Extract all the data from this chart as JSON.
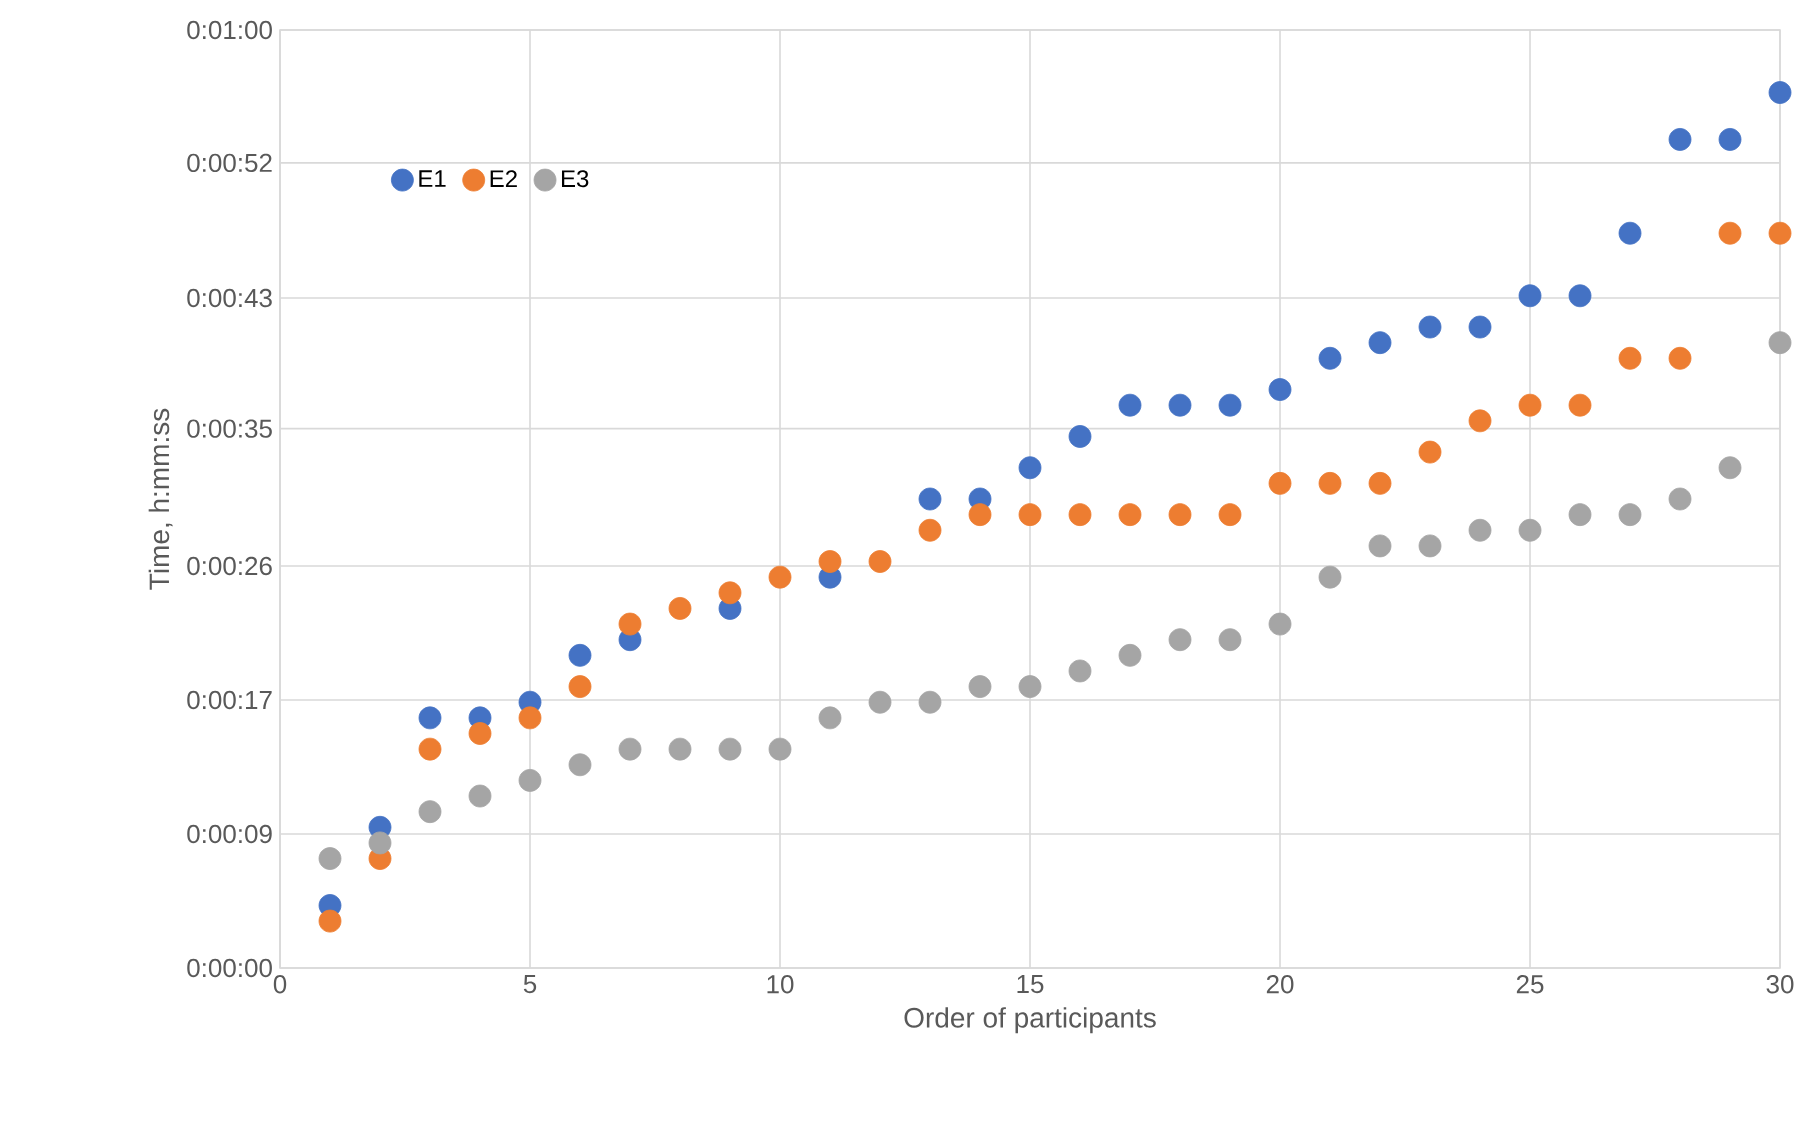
{
  "chart_data": {
    "type": "scatter",
    "xlabel": "Order of participants",
    "ylabel": "Time, h:mm:ss",
    "x": [
      1,
      2,
      3,
      4,
      5,
      6,
      7,
      8,
      9,
      10,
      11,
      12,
      13,
      14,
      15,
      16,
      17,
      18,
      19,
      20,
      21,
      22,
      23,
      24,
      25,
      26,
      27,
      28,
      29,
      30
    ],
    "series": [
      {
        "name": "E1",
        "color": "#4472c4",
        "values": [
          4,
          9,
          16,
          16,
          17,
          20,
          21,
          null,
          23,
          null,
          25,
          null,
          30,
          30,
          32,
          34,
          36,
          36,
          36,
          37,
          39,
          40,
          41,
          41,
          43,
          43,
          47,
          53,
          53,
          56
        ]
      },
      {
        "name": "E2",
        "color": "#ed7d31",
        "values": [
          3,
          7,
          14,
          15,
          16,
          18,
          22,
          23,
          24,
          25,
          26,
          26,
          28,
          29,
          29,
          29,
          29,
          29,
          29,
          31,
          31,
          31,
          33,
          35,
          36,
          36,
          39,
          39,
          47,
          47
        ]
      },
      {
        "name": "E3",
        "color": "#a5a5a5",
        "values": [
          7,
          8,
          10,
          11,
          12,
          13,
          14,
          14,
          14,
          14,
          16,
          17,
          17,
          18,
          18,
          19,
          20,
          21,
          21,
          22,
          25,
          27,
          27,
          28,
          28,
          29,
          29,
          30,
          32,
          40
        ]
      }
    ],
    "xlim": [
      0,
      30
    ],
    "xticks": [
      0,
      5,
      10,
      15,
      20,
      25,
      30
    ],
    "ylim": [
      0,
      60
    ],
    "yticks": [
      {
        "value": 0,
        "label": "0:00:00"
      },
      {
        "value": 8.571,
        "label": "0:00:09"
      },
      {
        "value": 17.143,
        "label": "0:00:17"
      },
      {
        "value": 25.714,
        "label": "0:00:26"
      },
      {
        "value": 34.5,
        "label": "0:00:35"
      },
      {
        "value": 42.857,
        "label": "0:00:43"
      },
      {
        "value": 51.5,
        "label": "0:00:52"
      },
      {
        "value": 60,
        "label": "0:01:00"
      }
    ],
    "grid": true,
    "legend": "top left",
    "marker": "circle"
  }
}
